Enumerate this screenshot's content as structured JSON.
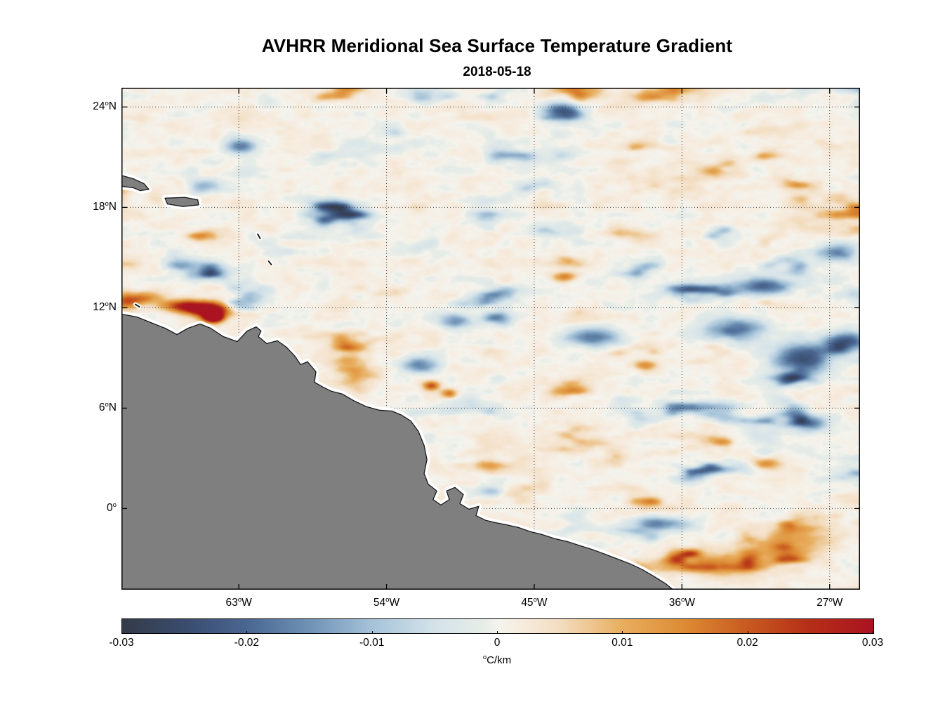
{
  "figure": {
    "title": "AVHRR Meridional Sea Surface Temperature Gradient",
    "subtitle": "2018-05-18"
  },
  "chart_data": {
    "type": "heatmap",
    "title": "AVHRR Meridional Sea Surface Temperature Gradient",
    "date": "2018-05-18",
    "description": "Satellite map of meridional SST gradient over the tropical western Atlantic / Caribbean with South American landmass in gray",
    "x_axis": {
      "range_deg_lon": [
        -70.15,
        -25.15
      ],
      "tick_lons": [
        -63,
        -54,
        -45,
        -36,
        -27
      ],
      "tick_labels": [
        "63°W",
        "54°W",
        "45°W",
        "36°W",
        "27°W"
      ]
    },
    "y_axis": {
      "range_deg_lat": [
        -4.85,
        25.15
      ],
      "tick_lats": [
        24,
        18,
        12,
        6,
        0
      ],
      "tick_labels": [
        "24°N",
        "18°N",
        "12°N",
        "6°N",
        "0°"
      ]
    },
    "grid": {
      "style": "dotted",
      "color": "#3c3c3c"
    },
    "colorbar": {
      "min": -0.03,
      "max": 0.03,
      "tick_values": [
        -0.03,
        -0.02,
        -0.01,
        0,
        0.01,
        0.02,
        0.03
      ],
      "tick_labels": [
        "-0.03",
        "-0.02",
        "-0.01",
        "0",
        "0.01",
        "0.02",
        "0.03"
      ],
      "unit": "°C/km",
      "stops": [
        [
          -0.03,
          "#343b49"
        ],
        [
          -0.025,
          "#3a4c6e"
        ],
        [
          -0.02,
          "#4a6792"
        ],
        [
          -0.015,
          "#7093b6"
        ],
        [
          -0.01,
          "#a6c3d9"
        ],
        [
          -0.005,
          "#d5e3e9"
        ],
        [
          -0.001,
          "#e8ede8"
        ],
        [
          0.0,
          "#f5f4ee"
        ],
        [
          0.002,
          "#f6ebdd"
        ],
        [
          0.005,
          "#f3ddc0"
        ],
        [
          0.01,
          "#e8ae5e"
        ],
        [
          0.015,
          "#dd8a33"
        ],
        [
          0.02,
          "#c85a20"
        ],
        [
          0.025,
          "#b42e18"
        ],
        [
          0.03,
          "#ab1321"
        ]
      ]
    },
    "land": {
      "fill": "#7f7f7f",
      "coast_line": "#1a1a1a",
      "coast_halo": "#ffffff",
      "mainland": [
        [
          -70.3,
          11.65
        ],
        [
          -70.15,
          11.62
        ],
        [
          -69.21,
          11.45
        ],
        [
          -68.35,
          11.11
        ],
        [
          -67.5,
          10.78
        ],
        [
          -66.77,
          10.4
        ],
        [
          -66.09,
          10.78
        ],
        [
          -65.36,
          11.03
        ],
        [
          -64.72,
          10.78
        ],
        [
          -63.95,
          10.28
        ],
        [
          -63.09,
          9.98
        ],
        [
          -62.49,
          10.61
        ],
        [
          -61.94,
          10.86
        ],
        [
          -61.64,
          10.61
        ],
        [
          -61.81,
          10.28
        ],
        [
          -61.3,
          9.86
        ],
        [
          -60.65,
          10.03
        ],
        [
          -60.1,
          9.65
        ],
        [
          -59.58,
          9.1
        ],
        [
          -59.24,
          8.6
        ],
        [
          -58.81,
          8.77
        ],
        [
          -58.3,
          8.18
        ],
        [
          -58.39,
          7.55
        ],
        [
          -57.87,
          7.26
        ],
        [
          -57.36,
          7.01
        ],
        [
          -56.68,
          6.84
        ],
        [
          -55.95,
          6.42
        ],
        [
          -55.22,
          6.09
        ],
        [
          -54.45,
          5.88
        ],
        [
          -53.68,
          5.83
        ],
        [
          -53.08,
          5.58
        ],
        [
          -52.53,
          5.24
        ],
        [
          -52.06,
          4.61
        ],
        [
          -51.71,
          3.77
        ],
        [
          -51.54,
          2.93
        ],
        [
          -51.71,
          2.09
        ],
        [
          -51.46,
          1.46
        ],
        [
          -50.94,
          1.05
        ],
        [
          -51.16,
          0.54
        ],
        [
          -50.69,
          0.21
        ],
        [
          -50.17,
          0.54
        ],
        [
          -50.34,
          1.05
        ],
        [
          -49.83,
          1.26
        ],
        [
          -49.32,
          0.84
        ],
        [
          -49.53,
          0.29
        ],
        [
          -48.97,
          -0.04
        ],
        [
          -48.38,
          0.13
        ],
        [
          -48.55,
          -0.42
        ],
        [
          -47.95,
          -0.71
        ],
        [
          -47.39,
          -0.84
        ],
        [
          -46.75,
          -0.96
        ],
        [
          -45.98,
          -1.13
        ],
        [
          -45.25,
          -1.38
        ],
        [
          -44.53,
          -1.55
        ],
        [
          -43.76,
          -1.8
        ],
        [
          -42.99,
          -1.97
        ],
        [
          -42.22,
          -2.22
        ],
        [
          -41.4,
          -2.47
        ],
        [
          -40.68,
          -2.73
        ],
        [
          -39.91,
          -3.02
        ],
        [
          -39.14,
          -3.31
        ],
        [
          -38.41,
          -3.65
        ],
        [
          -37.68,
          -4.07
        ],
        [
          -37.0,
          -4.49
        ],
        [
          -36.57,
          -4.83
        ],
        [
          -36.4,
          -5.0
        ],
        [
          -70.3,
          -5.0
        ]
      ],
      "islands": [
        [
          [
            -70.3,
            19.95
          ],
          [
            -69.42,
            19.71
          ],
          [
            -68.78,
            19.42
          ],
          [
            -68.48,
            19.08
          ],
          [
            -69.0,
            19.0
          ],
          [
            -69.42,
            19.17
          ],
          [
            -70.3,
            19.28
          ]
        ],
        [
          [
            -67.5,
            18.55
          ],
          [
            -66.3,
            18.6
          ],
          [
            -65.5,
            18.45
          ],
          [
            -65.45,
            18.15
          ],
          [
            -66.4,
            18.05
          ],
          [
            -67.35,
            18.2
          ]
        ]
      ],
      "islets": [
        [
          [
            -61.85,
            16.4
          ],
          [
            -61.7,
            16.15
          ]
        ],
        [
          [
            -61.18,
            14.78
          ],
          [
            -61.02,
            14.58
          ]
        ],
        [
          [
            -69.3,
            12.2
          ],
          [
            -69.05,
            12.05
          ]
        ]
      ]
    },
    "field_features": [
      [
        -64.9,
        11.9,
        0.04,
        1.3,
        0.45
      ],
      [
        -64.6,
        11.45,
        0.05,
        0.55,
        0.28
      ],
      [
        -66.5,
        12.15,
        0.022,
        1.2,
        0.35
      ],
      [
        -68.9,
        12.6,
        0.014,
        1.2,
        0.4
      ],
      [
        -70.0,
        12.35,
        0.016,
        0.8,
        0.5
      ],
      [
        -61.95,
        10.7,
        -0.06,
        0.18,
        0.15
      ],
      [
        -41.6,
        10.3,
        -0.02,
        1.6,
        0.55
      ],
      [
        -33.0,
        10.7,
        -0.022,
        1.8,
        0.7
      ],
      [
        -28.7,
        9.0,
        -0.026,
        1.7,
        0.9
      ],
      [
        -26.0,
        10.0,
        -0.024,
        1.3,
        0.6
      ],
      [
        -31.0,
        13.3,
        -0.02,
        1.8,
        0.55
      ],
      [
        -26.5,
        15.3,
        -0.018,
        1.2,
        0.5
      ],
      [
        -43.3,
        23.8,
        -0.024,
        1.1,
        0.5
      ],
      [
        -62.9,
        21.7,
        -0.018,
        0.9,
        0.45
      ],
      [
        -52.0,
        8.6,
        -0.018,
        1.2,
        0.5
      ],
      [
        -49.8,
        11.2,
        -0.016,
        1.0,
        0.45
      ],
      [
        -47.5,
        11.4,
        -0.014,
        0.9,
        0.4
      ],
      [
        -37.3,
        -0.9,
        -0.018,
        1.7,
        0.4
      ],
      [
        -45.2,
        -1.7,
        -0.014,
        0.8,
        0.3
      ],
      [
        -47.6,
        1.0,
        -0.013,
        0.8,
        0.35
      ],
      [
        -28.3,
        5.1,
        -0.018,
        1.2,
        0.5
      ],
      [
        -51.3,
        7.35,
        0.02,
        0.5,
        0.28
      ],
      [
        -50.2,
        6.9,
        0.018,
        0.5,
        0.28
      ],
      [
        -43.2,
        13.9,
        0.015,
        0.7,
        0.28
      ],
      [
        -38.3,
        8.6,
        0.015,
        0.7,
        0.3
      ],
      [
        -30.9,
        2.7,
        0.015,
        0.9,
        0.35
      ],
      [
        -29.0,
        -2.0,
        0.01,
        2.5,
        1.0
      ],
      [
        -33.5,
        -3.3,
        0.011,
        2.0,
        0.8
      ]
    ],
    "noise": {
      "seed_fine": 11,
      "seed_blob": 29,
      "fine_scale": [
        26,
        13
      ],
      "blob_scale": [
        105,
        42
      ],
      "fine_amp": 0.0035,
      "blob_amp": 0.045,
      "neg_gain": 1.3,
      "bias": 0.0008
    }
  }
}
